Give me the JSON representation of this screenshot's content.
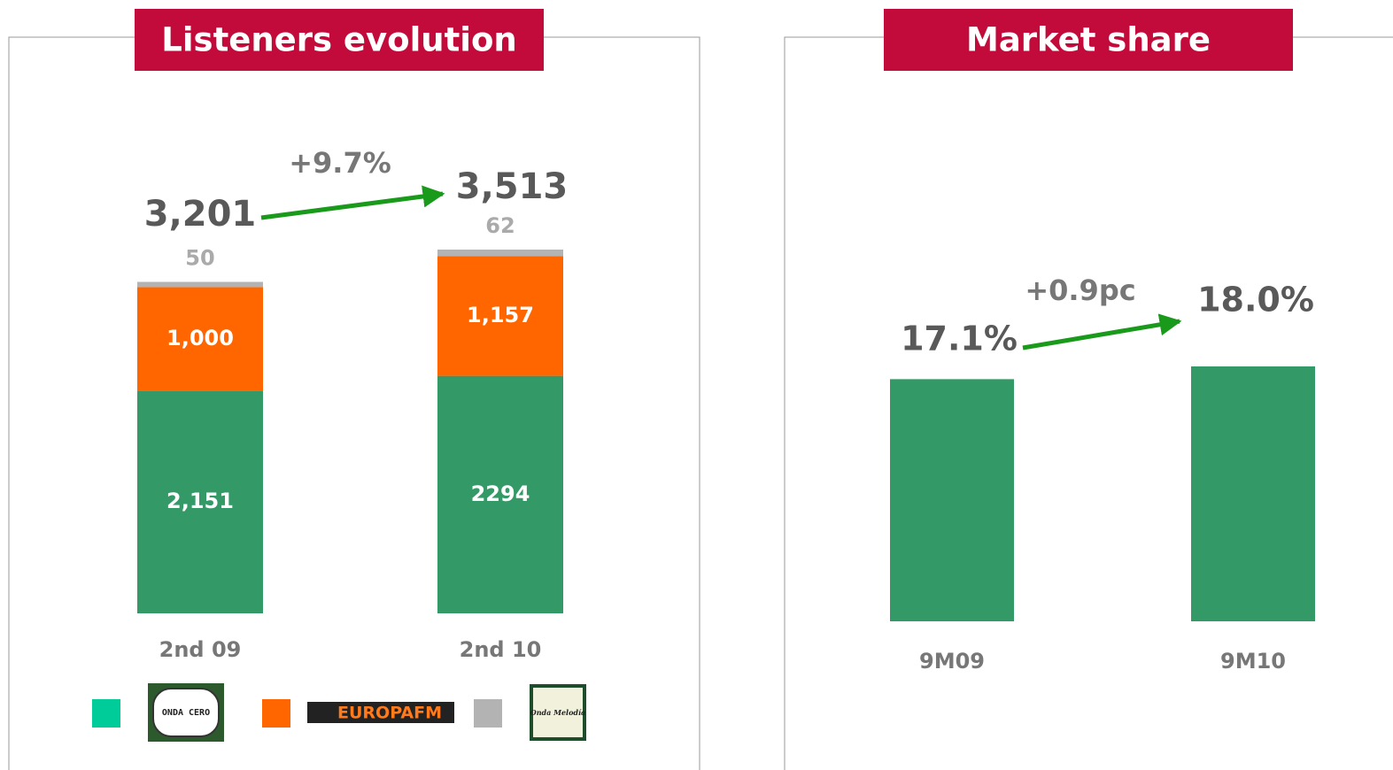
{
  "chart_data": [
    {
      "type": "stacked-bar",
      "title": "Listeners evolution",
      "categories": [
        "2nd 09",
        "2nd 10"
      ],
      "series": [
        {
          "name": "ONDA CERO",
          "color": "#339966",
          "values": [
            2151,
            2294
          ],
          "value_labels": [
            "2,151",
            "2294"
          ]
        },
        {
          "name": "EUROPAFM",
          "color": "#ff6600",
          "values": [
            1000,
            1157
          ],
          "value_labels": [
            "1,000",
            "1,157"
          ]
        },
        {
          "name": "Onda Melodía",
          "color": "#b3b3b3",
          "values": [
            50,
            62
          ]
        }
      ],
      "total_labels": [
        "3,201",
        "3,513"
      ],
      "annotation": "+9.7%"
    },
    {
      "type": "bar",
      "title": "Market share",
      "categories": [
        "9M09",
        "9M10"
      ],
      "values": [
        17.1,
        18.0
      ],
      "value_labels": [
        "17.1%",
        "18.0%"
      ],
      "color": "#339966",
      "annotation": "+0.9pc"
    }
  ]
}
